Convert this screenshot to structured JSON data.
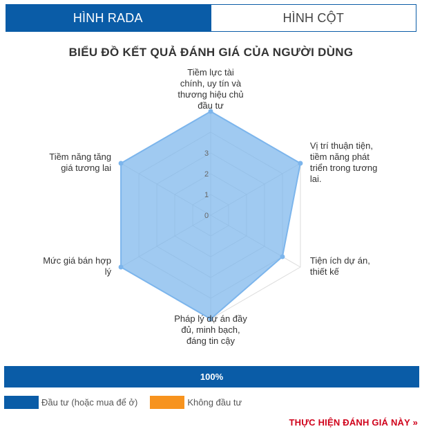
{
  "tabs": [
    {
      "label": "HÌNH RADA",
      "active": true
    },
    {
      "label": "HÌNH CỘT",
      "active": false
    }
  ],
  "chart_data": {
    "type": "radar",
    "title": "BIỂU ĐỒ KẾT QUẢ ĐÁNH GIÁ CỦA NGƯỜI DÙNG",
    "categories": [
      [
        "Tiềm lực tài",
        "chính, uy tín và",
        "thương hiệu chủ",
        "đầu tư"
      ],
      [
        "Vị trí thuận tiện,",
        "tiềm năng phát",
        "triển trong tương",
        "lai."
      ],
      [
        "Tiện ích dự án,",
        "thiết kế"
      ],
      [
        "Pháp lý dự án đầy",
        "đủ, minh bạch,",
        "đáng tin cậy"
      ],
      [
        "Mức giá bán hợp",
        "lý"
      ],
      [
        "Tiềm năng tăng",
        "giá tương lai"
      ]
    ],
    "radial_ticks": [
      "0",
      "1",
      "2",
      "3"
    ],
    "range": [
      0,
      5
    ],
    "series": [
      {
        "name": "Đầu tư (hoặc mua để ở)",
        "values": [
          5,
          5,
          4,
          5,
          5,
          5
        ],
        "color": "#7cb5ec"
      },
      {
        "name": "Không đầu tư",
        "values": [
          0,
          0,
          0,
          0,
          0,
          0
        ],
        "color": "#f7931e"
      }
    ],
    "legend_position": "bottom-left"
  },
  "legend": [
    {
      "label": "Đầu tư (hoặc mua để ở)",
      "color": "#0a5ca7"
    },
    {
      "label": "Không đầu tư",
      "color": "#f7931e"
    }
  ],
  "progress": {
    "label": "100%",
    "percent": 100
  },
  "cta": {
    "label": "THỰC HIỆN ĐÁNH GIÁ NÀY »"
  }
}
